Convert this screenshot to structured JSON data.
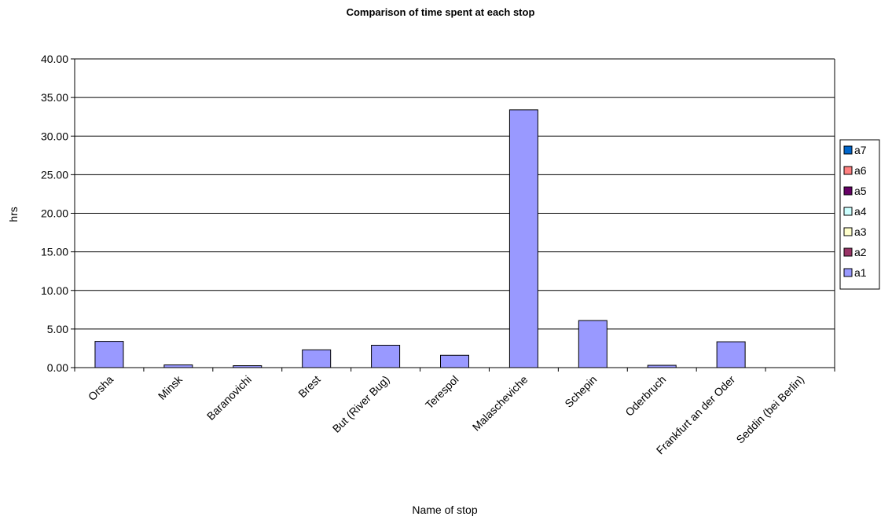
{
  "chart_data": {
    "type": "bar",
    "title": "Comparison of time spent at each stop",
    "xlabel": "Name of stop",
    "ylabel": "hrs",
    "ylim": [
      0,
      40
    ],
    "yticks": [
      "0.00",
      "5.00",
      "10.00",
      "15.00",
      "20.00",
      "25.00",
      "30.00",
      "35.00",
      "40.00"
    ],
    "grid": true,
    "legend_position": "right",
    "categories": [
      "Orsha",
      "Minsk",
      "Baranovichi",
      "Brest",
      "But (River Bug)",
      "Terespol",
      "Malascheviche",
      "Schepin",
      "Oderbruch",
      "Frankfurt an der Oder",
      "Seddin (bei Berlin)"
    ],
    "series": [
      {
        "name": "a1",
        "color": "#9999ff",
        "values": [
          3.4,
          0.35,
          0.25,
          2.3,
          2.9,
          1.6,
          33.4,
          6.1,
          0.3,
          3.35,
          0
        ]
      },
      {
        "name": "a2",
        "color": "#993366",
        "values": [
          0,
          0,
          0,
          0,
          0,
          0,
          0,
          0,
          0,
          0,
          0
        ]
      },
      {
        "name": "a3",
        "color": "#ffffcc",
        "values": [
          0,
          0,
          0,
          0,
          0,
          0,
          0,
          0,
          0,
          0,
          0
        ]
      },
      {
        "name": "a4",
        "color": "#ccffff",
        "values": [
          0,
          0,
          0,
          0,
          0,
          0,
          0,
          0,
          0,
          0,
          0
        ]
      },
      {
        "name": "a5",
        "color": "#660066",
        "values": [
          0,
          0,
          0,
          0,
          0,
          0,
          0,
          0,
          0,
          0,
          0
        ]
      },
      {
        "name": "a6",
        "color": "#ff8080",
        "values": [
          0,
          0,
          0,
          0,
          0,
          0,
          0,
          0,
          0,
          0,
          0
        ]
      },
      {
        "name": "a7",
        "color": "#0066cc",
        "values": [
          0,
          0,
          0,
          0,
          0,
          0,
          0,
          0,
          0,
          0,
          0
        ]
      }
    ],
    "legend_order": [
      "a7",
      "a6",
      "a5",
      "a4",
      "a3",
      "a2",
      "a1"
    ]
  }
}
